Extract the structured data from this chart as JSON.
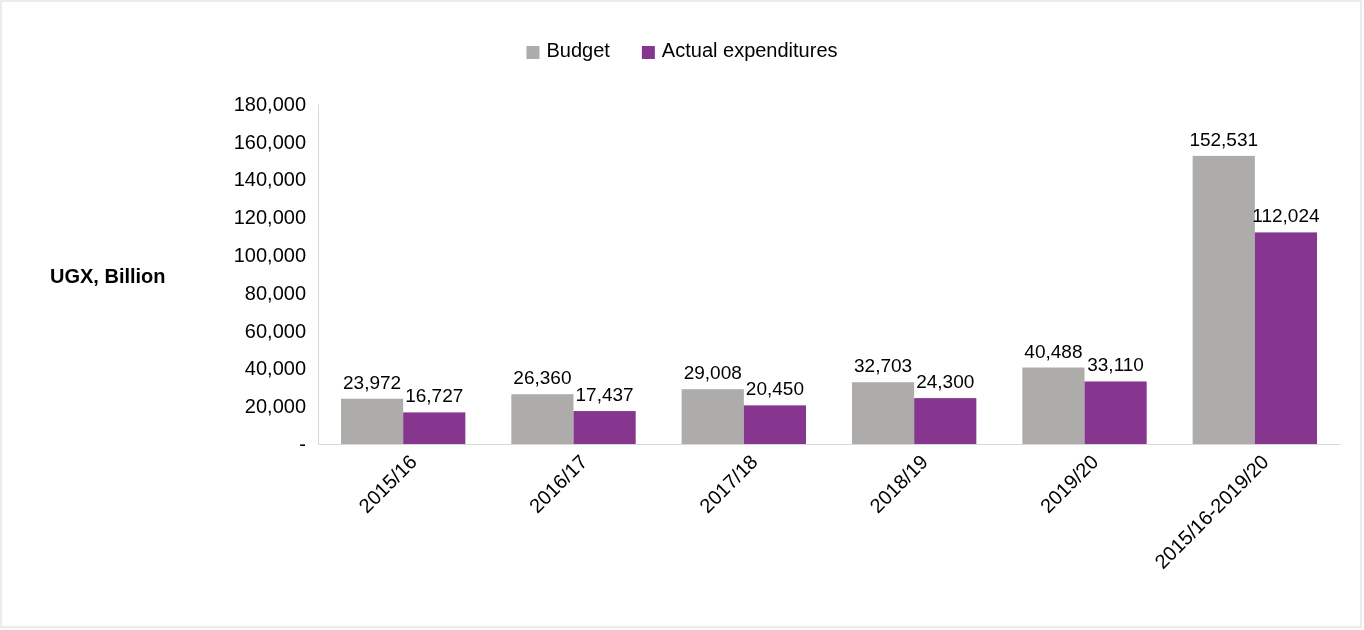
{
  "chart_data": {
    "type": "bar",
    "ylabel": "UGX, Billion",
    "categories": [
      "2015/16",
      "2016/17",
      "2017/18",
      "2018/19",
      "2019/20",
      "2015/16-2019/20"
    ],
    "series": [
      {
        "name": "Budget",
        "color": "#aeabab",
        "values": [
          23972,
          26360,
          29008,
          32703,
          40488,
          152531
        ],
        "value_labels": [
          "23,972",
          "26,360",
          "29,008",
          "32,703",
          "40,488",
          "152,531"
        ]
      },
      {
        "name": "Actual expenditures",
        "color": "#87368f",
        "values": [
          16727,
          17437,
          20450,
          24300,
          33110,
          112024
        ],
        "value_labels": [
          "16,727",
          "17,437",
          "20,450",
          "24,300",
          "33,110",
          "112,024"
        ]
      }
    ],
    "ylim": [
      0,
      180000
    ],
    "yticks": [
      {
        "value": 0,
        "label": "-"
      },
      {
        "value": 20000,
        "label": "20,000"
      },
      {
        "value": 40000,
        "label": "40,000"
      },
      {
        "value": 60000,
        "label": "60,000"
      },
      {
        "value": 80000,
        "label": "80,000"
      },
      {
        "value": 100000,
        "label": "100,000"
      },
      {
        "value": 120000,
        "label": "120,000"
      },
      {
        "value": 140000,
        "label": "140,000"
      },
      {
        "value": 160000,
        "label": "160,000"
      },
      {
        "value": 180000,
        "label": "180,000"
      }
    ],
    "grid": false,
    "legend": "top"
  }
}
